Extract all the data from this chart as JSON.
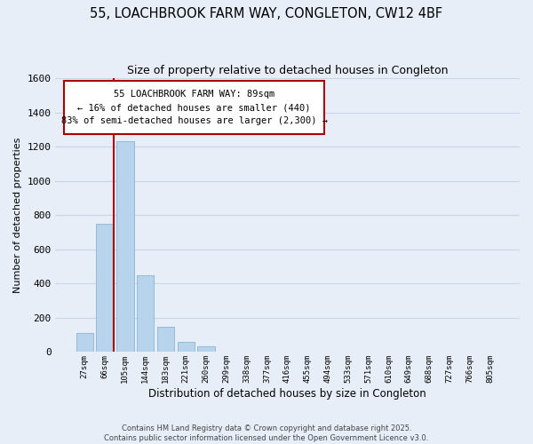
{
  "title_line1": "55, LOACHBROOK FARM WAY, CONGLETON, CW12 4BF",
  "title_line2": "Size of property relative to detached houses in Congleton",
  "bar_labels": [
    "27sqm",
    "66sqm",
    "105sqm",
    "144sqm",
    "183sqm",
    "221sqm",
    "260sqm",
    "299sqm",
    "338sqm",
    "377sqm",
    "416sqm",
    "455sqm",
    "494sqm",
    "533sqm",
    "571sqm",
    "610sqm",
    "649sqm",
    "688sqm",
    "727sqm",
    "766sqm",
    "805sqm"
  ],
  "bar_values": [
    110,
    750,
    1230,
    450,
    150,
    60,
    35,
    0,
    0,
    0,
    0,
    0,
    0,
    0,
    0,
    0,
    0,
    0,
    0,
    0,
    0
  ],
  "bar_color": "#b8d4ed",
  "bar_edge_color": "#8ab4d4",
  "grid_color": "#c8d4e8",
  "background_color": "#e8eef8",
  "ylabel": "Number of detached properties",
  "xlabel": "Distribution of detached houses by size in Congleton",
  "ylim": [
    0,
    1600
  ],
  "yticks": [
    0,
    200,
    400,
    600,
    800,
    1000,
    1200,
    1400,
    1600
  ],
  "annotation_box_text": "55 LOACHBROOK FARM WAY: 89sqm\n← 16% of detached houses are smaller (440)\n83% of semi-detached houses are larger (2,300) →",
  "vline_color": "#aa0000",
  "footnote_line1": "Contains HM Land Registry data © Crown copyright and database right 2025.",
  "footnote_line2": "Contains public sector information licensed under the Open Government Licence v3.0."
}
